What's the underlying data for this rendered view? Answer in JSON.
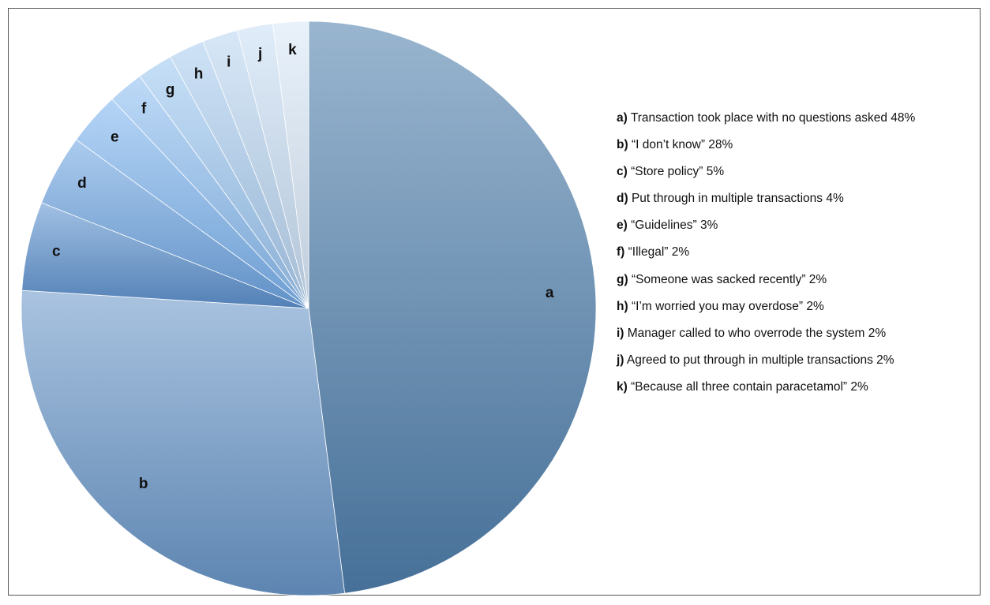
{
  "chart_data": {
    "type": "pie",
    "title": "",
    "slices": [
      {
        "key": "a",
        "key_label": "a)",
        "label": "Transaction took place with no questions asked",
        "value": 48,
        "value_label": "48%",
        "color": "#4f7fad"
      },
      {
        "key": "b",
        "key_label": "b)",
        "label": "“I don’t know”",
        "value": 28,
        "value_label": "28%",
        "color": "#6a97c9"
      },
      {
        "key": "c",
        "key_label": "c)",
        "label": "“Store policy”",
        "value": 5,
        "value_label": "5%",
        "color": "#5d92cf"
      },
      {
        "key": "d",
        "key_label": "d)",
        "label": "Put through in multiple transactions",
        "value": 4,
        "value_label": "4%",
        "color": "#6ea5e2"
      },
      {
        "key": "e",
        "key_label": "e)",
        "label": "“Guidelines”",
        "value": 3,
        "value_label": "3%",
        "color": "#7db4ef"
      },
      {
        "key": "f",
        "key_label": "f)",
        "label": "“Illegal”",
        "value": 2,
        "value_label": "2%",
        "color": "#8dbef1"
      },
      {
        "key": "g",
        "key_label": "g)",
        "label": "“Someone was sacked recently”",
        "value": 2,
        "value_label": "2%",
        "color": "#9dc7f2"
      },
      {
        "key": "h",
        "key_label": "h)",
        "label": "“I’m worried you may overdose”",
        "value": 2,
        "value_label": "2%",
        "color": "#abcdf0"
      },
      {
        "key": "i",
        "key_label": "i)",
        "label": "Manager called to who overrode the system",
        "value": 2,
        "value_label": "2%",
        "color": "#bad6f1"
      },
      {
        "key": "j",
        "key_label": "j)",
        "label": "Agreed to put through in multiple transactions",
        "value": 2,
        "value_label": "2%",
        "color": "#c9dff4"
      },
      {
        "key": "k",
        "key_label": "k)",
        "label": "“Because all three contain paracetamol”",
        "value": 2,
        "value_label": "2%",
        "color": "#d9e8f8"
      }
    ],
    "legend_position": "right"
  }
}
